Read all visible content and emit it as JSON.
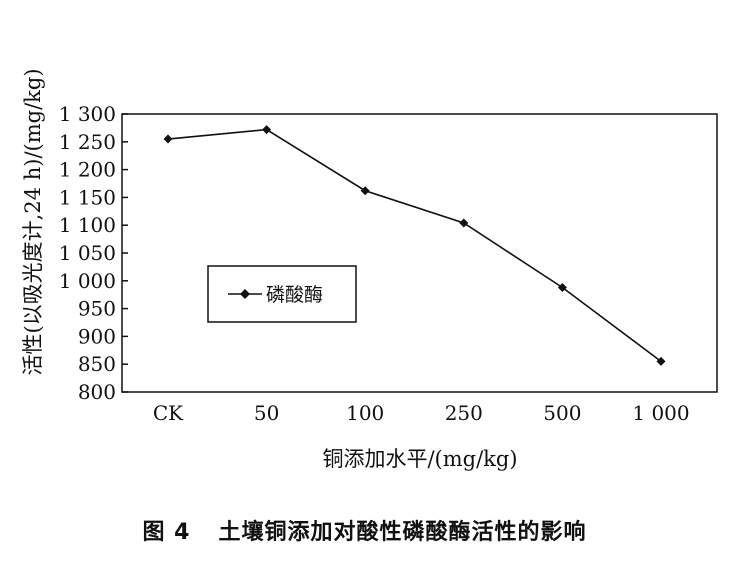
{
  "figure": {
    "caption_number": "图 4",
    "caption_text": "土壤铜添加对酸性磷酸酶活性的影响"
  },
  "chart_data": {
    "type": "line",
    "categories": [
      "CK",
      "50",
      "100",
      "250",
      "500",
      "1 000"
    ],
    "series": [
      {
        "name": "磷酸酶",
        "values": [
          1255,
          1272,
          1162,
          1104,
          988,
          855
        ]
      }
    ],
    "ylim": [
      800,
      1300
    ],
    "yticks": [
      800,
      850,
      900,
      950,
      "1 000",
      "1 050",
      "1 100",
      "1 150",
      "1 200",
      "1 250",
      "1 300"
    ],
    "xlabel": "铜添加水平/(mg/kg)",
    "ylabel": "活性(以吸光度计,24 h)/(mg/kg)",
    "legend": "inside-left",
    "grid": false,
    "line_color": "#111111"
  }
}
